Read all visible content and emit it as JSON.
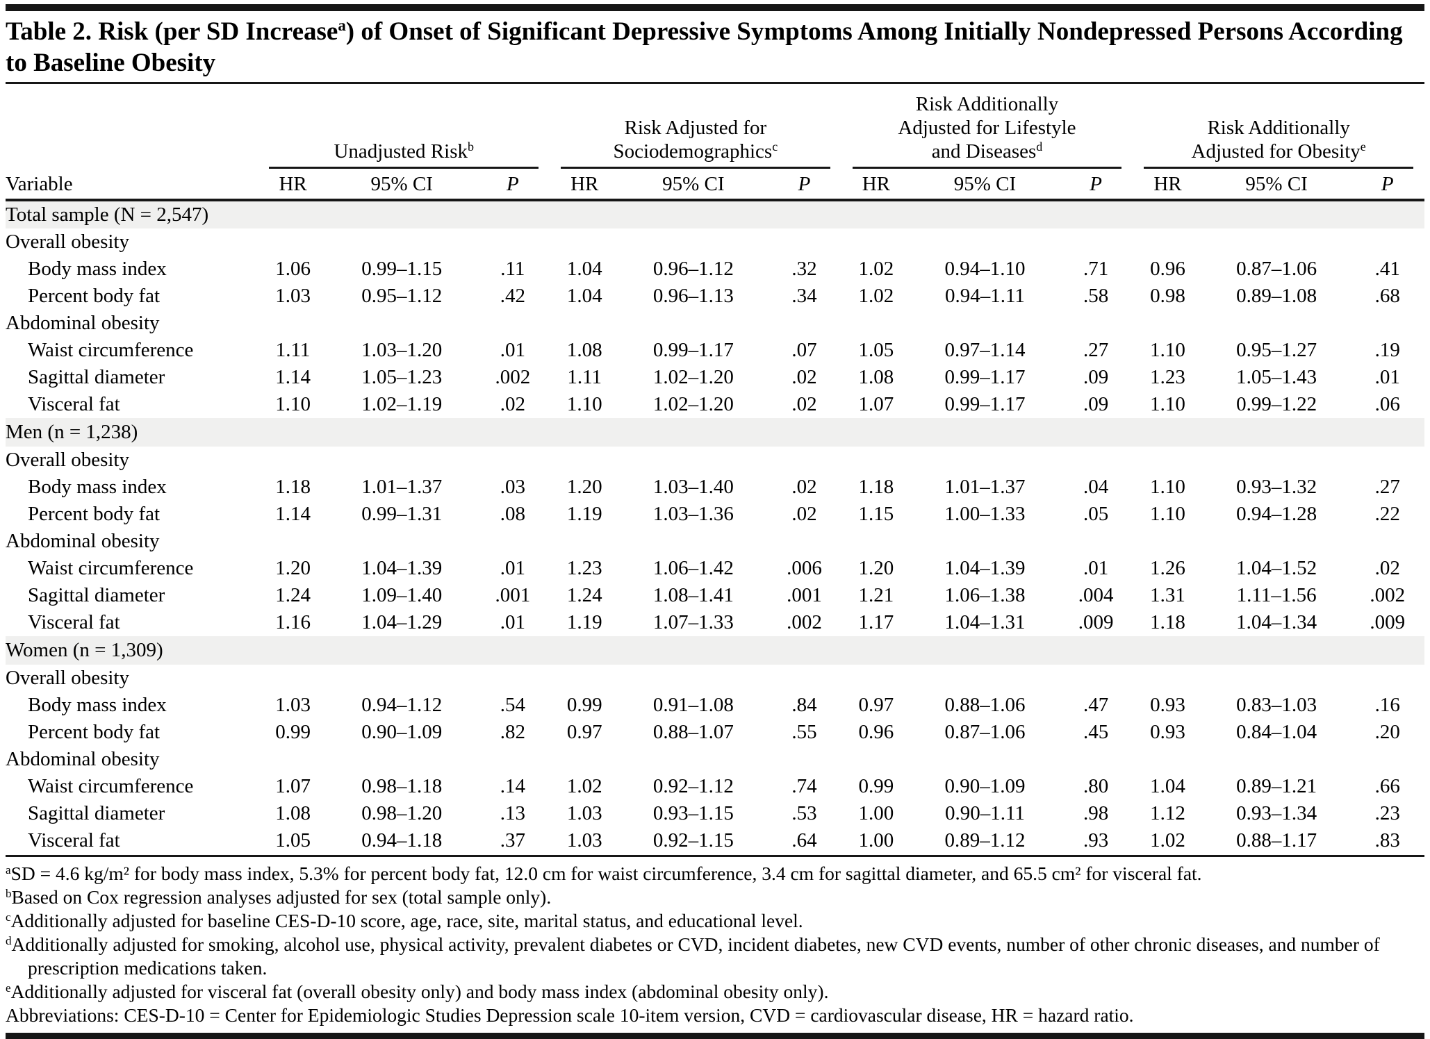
{
  "title": {
    "pre": "Table 2. Risk (per SD Increase",
    "sup": "a",
    "post": ") of Onset of Significant Depressive Symptoms Among Initially Nondepressed Persons According to Baseline Obesity"
  },
  "colors": {
    "section_band": "#f0f0ef",
    "rule": "#161616",
    "text": "#000000"
  },
  "table": {
    "variable_header": "Variable",
    "sub_headers": {
      "hr": "HR",
      "ci": "95% CI",
      "p": "P"
    },
    "col_groups": [
      {
        "label": "Unadjusted Risk",
        "sup": "b"
      },
      {
        "label": "Risk Adjusted for Sociodemographics",
        "sup": "c"
      },
      {
        "label": "Risk Additionally Adjusted for Lifestyle and Diseases",
        "sup": "d"
      },
      {
        "label": "Risk Additionally Adjusted for Obesity",
        "sup": "e"
      }
    ],
    "rows": [
      {
        "type": "section",
        "label": "Total sample (N = 2,547)"
      },
      {
        "type": "subsection",
        "label": "Overall obesity"
      },
      {
        "type": "data",
        "label": "Body mass index",
        "values": [
          "1.06",
          "0.99–1.15",
          ".11",
          "1.04",
          "0.96–1.12",
          ".32",
          "1.02",
          "0.94–1.10",
          ".71",
          "0.96",
          "0.87–1.06",
          ".41"
        ]
      },
      {
        "type": "data",
        "label": "Percent body fat",
        "values": [
          "1.03",
          "0.95–1.12",
          ".42",
          "1.04",
          "0.96–1.13",
          ".34",
          "1.02",
          "0.94–1.11",
          ".58",
          "0.98",
          "0.89–1.08",
          ".68"
        ]
      },
      {
        "type": "subsection",
        "label": "Abdominal obesity"
      },
      {
        "type": "data",
        "label": "Waist circumference",
        "values": [
          "1.11",
          "1.03–1.20",
          ".01",
          "1.08",
          "0.99–1.17",
          ".07",
          "1.05",
          "0.97–1.14",
          ".27",
          "1.10",
          "0.95–1.27",
          ".19"
        ]
      },
      {
        "type": "data",
        "label": "Sagittal diameter",
        "values": [
          "1.14",
          "1.05–1.23",
          ".002",
          "1.11",
          "1.02–1.20",
          ".02",
          "1.08",
          "0.99–1.17",
          ".09",
          "1.23",
          "1.05–1.43",
          ".01"
        ]
      },
      {
        "type": "data",
        "label": "Visceral fat",
        "values": [
          "1.10",
          "1.02–1.19",
          ".02",
          "1.10",
          "1.02–1.20",
          ".02",
          "1.07",
          "0.99–1.17",
          ".09",
          "1.10",
          "0.99–1.22",
          ".06"
        ]
      },
      {
        "type": "section",
        "label": "Men (n = 1,238)"
      },
      {
        "type": "subsection",
        "label": "Overall obesity"
      },
      {
        "type": "data",
        "label": "Body mass index",
        "values": [
          "1.18",
          "1.01–1.37",
          ".03",
          "1.20",
          "1.03–1.40",
          ".02",
          "1.18",
          "1.01–1.37",
          ".04",
          "1.10",
          "0.93–1.32",
          ".27"
        ]
      },
      {
        "type": "data",
        "label": "Percent body fat",
        "values": [
          "1.14",
          "0.99–1.31",
          ".08",
          "1.19",
          "1.03–1.36",
          ".02",
          "1.15",
          "1.00–1.33",
          ".05",
          "1.10",
          "0.94–1.28",
          ".22"
        ]
      },
      {
        "type": "subsection",
        "label": "Abdominal obesity"
      },
      {
        "type": "data",
        "label": "Waist circumference",
        "values": [
          "1.20",
          "1.04–1.39",
          ".01",
          "1.23",
          "1.06–1.42",
          ".006",
          "1.20",
          "1.04–1.39",
          ".01",
          "1.26",
          "1.04–1.52",
          ".02"
        ]
      },
      {
        "type": "data",
        "label": "Sagittal diameter",
        "values": [
          "1.24",
          "1.09–1.40",
          ".001",
          "1.24",
          "1.08–1.41",
          ".001",
          "1.21",
          "1.06–1.38",
          ".004",
          "1.31",
          "1.11–1.56",
          ".002"
        ]
      },
      {
        "type": "data",
        "label": "Visceral fat",
        "values": [
          "1.16",
          "1.04–1.29",
          ".01",
          "1.19",
          "1.07–1.33",
          ".002",
          "1.17",
          "1.04–1.31",
          ".009",
          "1.18",
          "1.04–1.34",
          ".009"
        ]
      },
      {
        "type": "section",
        "label": "Women (n = 1,309)"
      },
      {
        "type": "subsection",
        "label": "Overall obesity"
      },
      {
        "type": "data",
        "label": "Body mass index",
        "values": [
          "1.03",
          "0.94–1.12",
          ".54",
          "0.99",
          "0.91–1.08",
          ".84",
          "0.97",
          "0.88–1.06",
          ".47",
          "0.93",
          "0.83–1.03",
          ".16"
        ]
      },
      {
        "type": "data",
        "label": "Percent body fat",
        "values": [
          "0.99",
          "0.90–1.09",
          ".82",
          "0.97",
          "0.88–1.07",
          ".55",
          "0.96",
          "0.87–1.06",
          ".45",
          "0.93",
          "0.84–1.04",
          ".20"
        ]
      },
      {
        "type": "subsection",
        "label": "Abdominal obesity"
      },
      {
        "type": "data",
        "label": "Waist circumference",
        "values": [
          "1.07",
          "0.98–1.18",
          ".14",
          "1.02",
          "0.92–1.12",
          ".74",
          "0.99",
          "0.90–1.09",
          ".80",
          "1.04",
          "0.89–1.21",
          ".66"
        ]
      },
      {
        "type": "data",
        "label": "Sagittal diameter",
        "values": [
          "1.08",
          "0.98–1.20",
          ".13",
          "1.03",
          "0.93–1.15",
          ".53",
          "1.00",
          "0.90–1.11",
          ".98",
          "1.12",
          "0.93–1.34",
          ".23"
        ]
      },
      {
        "type": "data",
        "label": "Visceral fat",
        "values": [
          "1.05",
          "0.94–1.18",
          ".37",
          "1.03",
          "0.92–1.15",
          ".64",
          "1.00",
          "0.89–1.12",
          ".93",
          "1.02",
          "0.88–1.17",
          ".83"
        ]
      }
    ]
  },
  "footnotes": [
    {
      "sup": "a",
      "text": "SD = 4.6 kg/m² for body mass index, 5.3% for percent body fat, 12.0 cm for waist circumference, 3.4 cm for sagittal diameter, and 65.5 cm² for visceral fat."
    },
    {
      "sup": "b",
      "text": "Based on Cox regression analyses adjusted for sex (total sample only)."
    },
    {
      "sup": "c",
      "text": "Additionally adjusted for baseline CES-D-10 score, age, race, site, marital status, and educational level."
    },
    {
      "sup": "d",
      "text": "Additionally adjusted for smoking, alcohol use, physical activity, prevalent diabetes or CVD, incident diabetes, new CVD events, number of other chronic diseases, and number of prescription medications taken."
    },
    {
      "sup": "e",
      "text": "Additionally adjusted for visceral fat (overall obesity only) and body mass index (abdominal obesity only)."
    },
    {
      "sup": "",
      "text": "Abbreviations: CES-D-10 = Center for Epidemiologic Studies Depression scale 10-item version, CVD = cardiovascular disease, HR = hazard ratio."
    }
  ]
}
